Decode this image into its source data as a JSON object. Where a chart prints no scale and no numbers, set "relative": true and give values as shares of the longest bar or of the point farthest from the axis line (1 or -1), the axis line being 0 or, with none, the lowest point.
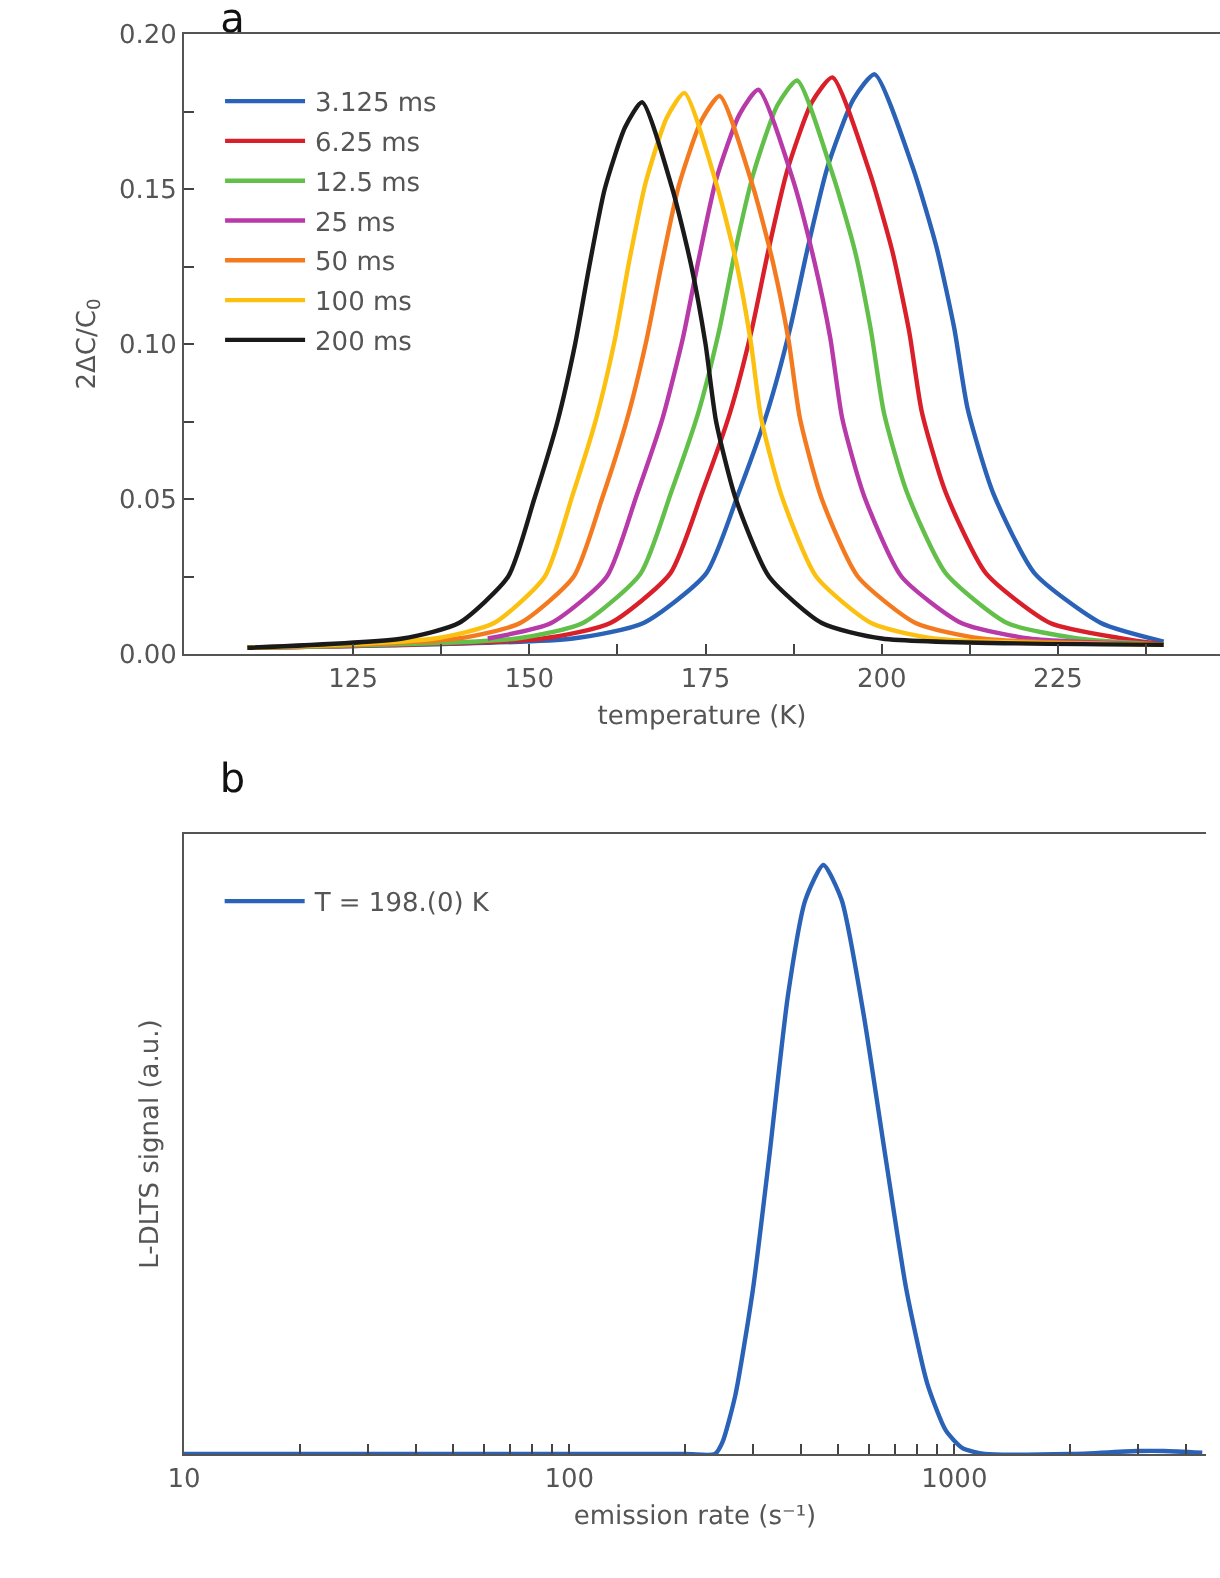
{
  "chart_data": [
    {
      "type": "line",
      "title": "a",
      "xlabel": "temperature (K)",
      "ylabel": "2ΔC/C$_{0}$",
      "xlim": [
        101,
        248
      ],
      "ylim": [
        0,
        0.2
      ],
      "xticks": [
        {
          "value": 125,
          "label": "125"
        },
        {
          "value": 137.5,
          "label": null
        },
        {
          "value": 150,
          "label": "150"
        },
        {
          "value": 162.5,
          "label": null
        },
        {
          "value": 175,
          "label": "175"
        },
        {
          "value": 187.5,
          "label": null
        },
        {
          "value": 200,
          "label": "200"
        },
        {
          "value": 212.5,
          "label": null
        },
        {
          "value": 225,
          "label": "225"
        },
        {
          "value": 237.5,
          "label": null
        }
      ],
      "yticks": [
        {
          "value": 0,
          "label": "0.00"
        },
        {
          "value": 0.025,
          "label": null
        },
        {
          "value": 0.05,
          "label": "0.05"
        },
        {
          "value": 0.075,
          "label": null
        },
        {
          "value": 0.1,
          "label": "0.10"
        },
        {
          "value": 0.125,
          "label": null
        },
        {
          "value": 0.15,
          "label": "0.15"
        },
        {
          "value": 0.175,
          "label": null
        },
        {
          "value": 0.2,
          "label": "0.20"
        }
      ],
      "grid": false,
      "legend": "top left",
      "line_style": "solid",
      "series": [
        {
          "name": "3.125 ms",
          "color": "#2a62b8",
          "x": [
            110,
            156.2,
            166.2,
            175.1,
            179.7,
            183.9,
            187,
            189.5,
            192.3,
            196,
            199,
            204.4,
            207.8,
            210.3,
            212.2,
            215.8,
            221.7,
            231.1,
            240
          ],
          "values": [
            0.002,
            0.005,
            0.01,
            0.026,
            0.052,
            0.079,
            0.105,
            0.131,
            0.157,
            0.179,
            0.187,
            0.157,
            0.131,
            0.105,
            0.079,
            0.052,
            0.026,
            0.01,
            0.004
          ]
        },
        {
          "name": "6.25 ms",
          "color": "#d9202a",
          "x": [
            110,
            151.9,
            161.5,
            170,
            174.5,
            178.5,
            181.5,
            183.9,
            186.6,
            190.1,
            193,
            198.2,
            201.5,
            203.9,
            205.7,
            209.1,
            214.8,
            223.9,
            234.1,
            240
          ],
          "values": [
            0.002,
            0.005,
            0.01,
            0.026,
            0.052,
            0.078,
            0.104,
            0.13,
            0.156,
            0.178,
            0.186,
            0.156,
            0.13,
            0.104,
            0.078,
            0.052,
            0.026,
            0.01,
            0.005,
            0.003
          ]
        },
        {
          "name": "12.5 ms",
          "color": "#62c04a",
          "x": [
            110,
            148.2,
            157.6,
            165.8,
            170.1,
            174,
            176.9,
            179.2,
            181.8,
            185.2,
            188,
            193,
            196.2,
            198.5,
            200.3,
            203.6,
            209.1,
            217.8,
            227.8,
            240
          ],
          "values": [
            0.002,
            0.005,
            0.01,
            0.026,
            0.052,
            0.078,
            0.104,
            0.13,
            0.155,
            0.177,
            0.185,
            0.155,
            0.13,
            0.104,
            0.078,
            0.052,
            0.026,
            0.01,
            0.005,
            0.003
          ]
        },
        {
          "name": "25 ms",
          "color": "#b83aa8",
          "x": [
            144.1,
            153.1,
            161,
            165.2,
            168.9,
            171.8,
            174,
            176.5,
            179.8,
            182.5,
            187.4,
            190.4,
            192.7,
            194.4,
            197.5,
            202.8,
            211.3,
            220.9,
            240
          ],
          "values": [
            0.005,
            0.01,
            0.025,
            0.051,
            0.076,
            0.102,
            0.127,
            0.153,
            0.174,
            0.182,
            0.153,
            0.127,
            0.102,
            0.076,
            0.051,
            0.025,
            0.01,
            0.005,
            0.003
          ]
        },
        {
          "name": "50 ms",
          "color": "#f47a20",
          "x": [
            110,
            139.9,
            148.7,
            156.3,
            160.3,
            163.9,
            166.6,
            168.8,
            171.2,
            174.4,
            177,
            181.7,
            184.6,
            186.8,
            188.4,
            191.5,
            196.6,
            204.8,
            214.1,
            240
          ],
          "values": [
            0.002,
            0.005,
            0.01,
            0.025,
            0.05,
            0.076,
            0.101,
            0.126,
            0.151,
            0.172,
            0.18,
            0.151,
            0.126,
            0.101,
            0.076,
            0.05,
            0.025,
            0.01,
            0.005,
            0.003
          ]
        },
        {
          "name": "100 ms",
          "color": "#fcc010",
          "x": [
            110,
            136.6,
            145,
            152.2,
            156.1,
            159.5,
            162.1,
            164.2,
            166.5,
            169.5,
            172,
            176.5,
            179.3,
            181.4,
            182.9,
            185.8,
            190.7,
            198.5,
            207.4,
            240
          ],
          "values": [
            0.002,
            0.005,
            0.01,
            0.025,
            0.051,
            0.076,
            0.101,
            0.127,
            0.152,
            0.173,
            0.181,
            0.152,
            0.127,
            0.101,
            0.076,
            0.051,
            0.025,
            0.01,
            0.005,
            0.003
          ]
        },
        {
          "name": "200 ms",
          "color": "#1a1a1a",
          "x": [
            110,
            132,
            140,
            147,
            150.7,
            154,
            156.5,
            158.5,
            160.7,
            163.6,
            166,
            170.3,
            173,
            175,
            176.5,
            179.3,
            184,
            191.5,
            200,
            240
          ],
          "values": [
            0.002,
            0.005,
            0.01,
            0.025,
            0.05,
            0.075,
            0.1,
            0.125,
            0.15,
            0.17,
            0.178,
            0.15,
            0.125,
            0.1,
            0.075,
            0.05,
            0.025,
            0.01,
            0.005,
            0.003
          ]
        }
      ]
    },
    {
      "type": "line",
      "title": "b",
      "xlabel": "emission rate (s⁻¹)",
      "ylabel": "L-DLTS signal (a.u.)",
      "log": "x",
      "relative": true,
      "xlim": [
        10,
        4500
      ],
      "xticks": [
        {
          "value": 10,
          "label": "10"
        },
        {
          "value": 20,
          "label": null
        },
        {
          "value": 30,
          "label": null
        },
        {
          "value": 40,
          "label": null
        },
        {
          "value": 50,
          "label": null
        },
        {
          "value": 60,
          "label": null
        },
        {
          "value": 70,
          "label": null
        },
        {
          "value": 80,
          "label": null
        },
        {
          "value": 90,
          "label": null
        },
        {
          "value": 100,
          "label": "100"
        },
        {
          "value": 200,
          "label": null
        },
        {
          "value": 300,
          "label": null
        },
        {
          "value": 400,
          "label": null
        },
        {
          "value": 500,
          "label": null
        },
        {
          "value": 600,
          "label": null
        },
        {
          "value": 700,
          "label": null
        },
        {
          "value": 800,
          "label": null
        },
        {
          "value": 900,
          "label": null
        },
        {
          "value": 1000,
          "label": "1000"
        },
        {
          "value": 2000,
          "label": null
        },
        {
          "value": 3000,
          "label": null
        },
        {
          "value": 4000,
          "label": null
        }
      ],
      "grid": false,
      "legend": "top left",
      "line_style": "solid",
      "series": [
        {
          "name": "T = 198.(0) K",
          "color": "#2a62b8",
          "x": [
            10,
            200,
            239,
            250,
            270,
            300,
            330,
            370,
            410,
            457,
            510,
            580,
            664,
            750,
            850,
            950,
            1050,
            1200,
            2000,
            3000,
            3500,
            4400
          ],
          "values": [
            0,
            0,
            0,
            0.02,
            0.1,
            0.28,
            0.5,
            0.78,
            0.94,
            1,
            0.94,
            0.75,
            0.5,
            0.28,
            0.12,
            0.04,
            0.01,
            0,
            0,
            0.005,
            0.005,
            0.002
          ]
        }
      ]
    }
  ]
}
